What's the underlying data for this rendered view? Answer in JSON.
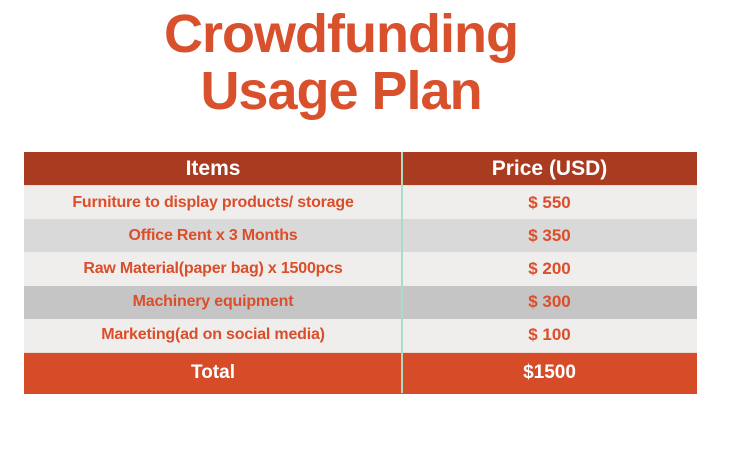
{
  "title": {
    "line1": "Crowdfunding",
    "line2": "Usage Plan"
  },
  "table": {
    "headers": [
      "Items",
      "Price (USD)"
    ],
    "rows": [
      {
        "item": "Furniture to display products/ storage",
        "price": "$ 550"
      },
      {
        "item": "Office Rent x 3 Months",
        "price": "$ 350"
      },
      {
        "item": "Raw Material(paper bag) x 1500pcs",
        "price": "$ 200"
      },
      {
        "item": "Machinery equipment",
        "price": "$ 300"
      },
      {
        "item": "Marketing(ad on social media)",
        "price": "$ 100"
      }
    ],
    "total": {
      "label": "Total",
      "price": "$1500"
    }
  },
  "colors": {
    "title_text": "#D8502C",
    "header_bg": "#A93B20",
    "header_text": "#FFFFFF",
    "row_text": "#DB4E2B",
    "row_bg_odd": "#EFEEEC",
    "row_bg_2": "#D9D9D9",
    "row_bg_4": "#C5C5C5",
    "total_bg": "#D74C28",
    "total_text": "#FFFFFF",
    "divider": "#ABDCC6"
  }
}
